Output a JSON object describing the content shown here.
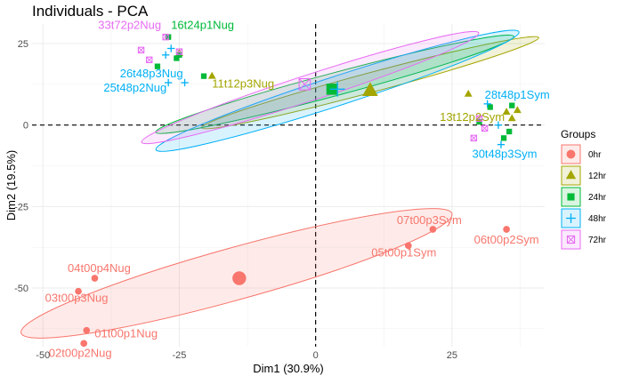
{
  "chart_data": {
    "type": "scatter",
    "title": "Individuals - PCA",
    "xlabel": "Dim1 (30.9%)",
    "ylabel": "Dim2 (19.5%)",
    "xlim": [
      -52,
      42
    ],
    "ylim": [
      -68,
      31
    ],
    "xticks": [
      -50,
      -25,
      0,
      25
    ],
    "yticks": [
      25,
      0,
      -25,
      -50
    ],
    "grid": true,
    "legend": {
      "title": "Groups",
      "placement": "right"
    },
    "groups": [
      {
        "name": "0hr",
        "color": "#F8766D",
        "shape": "circle",
        "centroid": [
          -14,
          -47
        ],
        "ellipse": {
          "cx": -14.5,
          "cy": -45.5,
          "rx": 41,
          "ry": 8,
          "angle_deg": 15.5
        },
        "points": [
          {
            "x": 17,
            "y": -37,
            "label": "05t00p1Sym"
          },
          {
            "x": 21.5,
            "y": -32,
            "label": "07t00p3Sym"
          },
          {
            "x": 35,
            "y": -32,
            "label": "06t00p2Sym"
          },
          {
            "x": -40.5,
            "y": -47,
            "label": "04t00p4Nug"
          },
          {
            "x": -43.5,
            "y": -51,
            "label": "03t00p3Nug"
          },
          {
            "x": -42,
            "y": -63,
            "label": "01t00p1Nug"
          },
          {
            "x": -42.5,
            "y": -67,
            "label": "02t00p2Nug"
          }
        ]
      },
      {
        "name": "12hr",
        "color": "#A3A500",
        "shape": "triangle",
        "centroid": [
          10,
          10.5
        ],
        "ellipse": {
          "cx": 10,
          "cy": 13,
          "rx": 32,
          "ry": 3,
          "angle_deg": 15
        },
        "points": [
          {
            "x": -25,
            "y": 22,
            "label": ""
          },
          {
            "x": -19,
            "y": 15,
            "label": "11t12p3Nug"
          },
          {
            "x": 28,
            "y": 9.5,
            "label": ""
          },
          {
            "x": 35,
            "y": 4,
            "label": "13t12p2Sym"
          },
          {
            "x": 37,
            "y": 4.5,
            "label": ""
          },
          {
            "x": 36,
            "y": 2,
            "label": ""
          }
        ]
      },
      {
        "name": "24hr",
        "color": "#00BA38",
        "shape": "square",
        "centroid": [
          3,
          11
        ],
        "ellipse": {
          "cx": 3.5,
          "cy": 12.5,
          "rx": 34,
          "ry": 3.5,
          "angle_deg": 15
        },
        "points": [
          {
            "x": -27,
            "y": 27,
            "label": "16t24p1Nug"
          },
          {
            "x": -25.5,
            "y": 20.5,
            "label": ""
          },
          {
            "x": -25,
            "y": 21.5,
            "label": ""
          },
          {
            "x": -29,
            "y": 18,
            "label": ""
          },
          {
            "x": -20.5,
            "y": 15,
            "label": ""
          },
          {
            "x": 32,
            "y": 5.5,
            "label": ""
          },
          {
            "x": 36,
            "y": 6,
            "label": ""
          },
          {
            "x": 30,
            "y": 1,
            "label": ""
          },
          {
            "x": 34.5,
            "y": -4,
            "label": ""
          },
          {
            "x": 35.5,
            "y": -2,
            "label": ""
          }
        ]
      },
      {
        "name": "48hr",
        "color": "#00B0F6",
        "shape": "plus",
        "centroid": [
          4,
          11
        ],
        "ellipse": {
          "cx": 4,
          "cy": 10.5,
          "rx": 35,
          "ry": 4.5,
          "angle_deg": 18
        },
        "points": [
          {
            "x": -26.5,
            "y": 23.5,
            "label": ""
          },
          {
            "x": -27.5,
            "y": 21.5,
            "label": ""
          },
          {
            "x": -24,
            "y": 13,
            "label": "26t48p3Nug"
          },
          {
            "x": -27,
            "y": 13,
            "label": "25t48p2Nug"
          },
          {
            "x": 31.5,
            "y": 6.5,
            "label": "28t48p1Sym"
          },
          {
            "x": 33.5,
            "y": 0,
            "label": ""
          },
          {
            "x": 34,
            "y": -6,
            "label": "30t48p3Sym"
          }
        ]
      },
      {
        "name": "72hr",
        "color": "#E76BF3",
        "shape": "square-cross",
        "centroid": [
          -2,
          12.5
        ],
        "ellipse": {
          "cx": -1,
          "cy": 11.5,
          "rx": 32.5,
          "ry": 4,
          "angle_deg": 18
        },
        "points": [
          {
            "x": -27.5,
            "y": 27,
            "label": "33t72p2Nug"
          },
          {
            "x": -32,
            "y": 23,
            "label": ""
          },
          {
            "x": -30.5,
            "y": 20,
            "label": ""
          },
          {
            "x": -25,
            "y": 22.5,
            "label": ""
          },
          {
            "x": 30,
            "y": 2,
            "label": ""
          },
          {
            "x": 31,
            "y": -1,
            "label": ""
          },
          {
            "x": 29,
            "y": -4,
            "label": ""
          }
        ]
      }
    ]
  }
}
